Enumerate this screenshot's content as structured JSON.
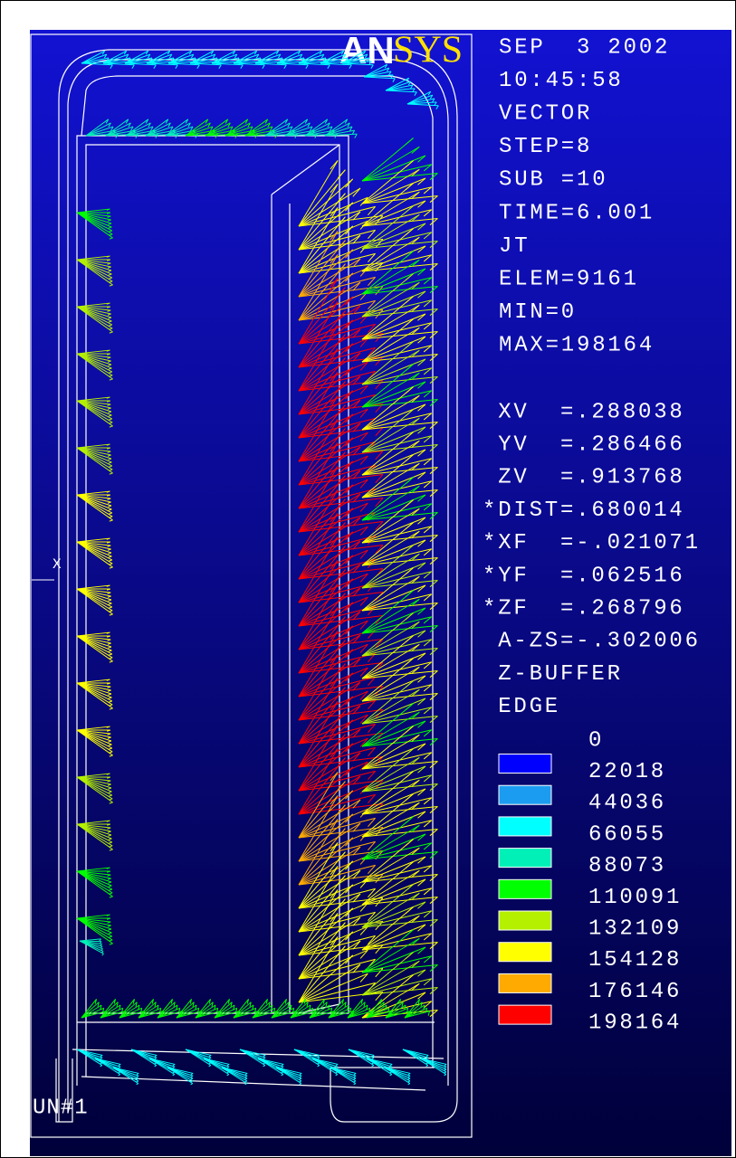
{
  "logo_left": "AN",
  "logo_right": "SYS",
  "info_lines": [
    "SEP  3 2002",
    "10:45:58",
    "VECTOR",
    "STEP=8",
    "SUB =10",
    "TIME=6.001",
    "JT",
    "ELEM=9161",
    "MIN=0",
    "MAX=198164"
  ],
  "view_lines": [
    " XV  =.288038",
    " YV  =.286466",
    " ZV  =.913768",
    "*DIST=.680014",
    "*XF  =-.021071",
    "*YF  =.062516",
    "*ZF  =.268796",
    " A-ZS=-.302006",
    " Z-BUFFER",
    " EDGE"
  ],
  "legend": {
    "values": [
      0,
      22018,
      44036,
      66055,
      88073,
      110091,
      132109,
      154128,
      176146,
      198164
    ],
    "colors": [
      "#0000ff",
      "#1c9cf0",
      "#00ffff",
      "#00f0b8",
      "#00ff00",
      "#b4f000",
      "#ffff00",
      "#ffaa00",
      "#ff0000"
    ]
  },
  "axis_label": "X",
  "window_label": "UN#1"
}
